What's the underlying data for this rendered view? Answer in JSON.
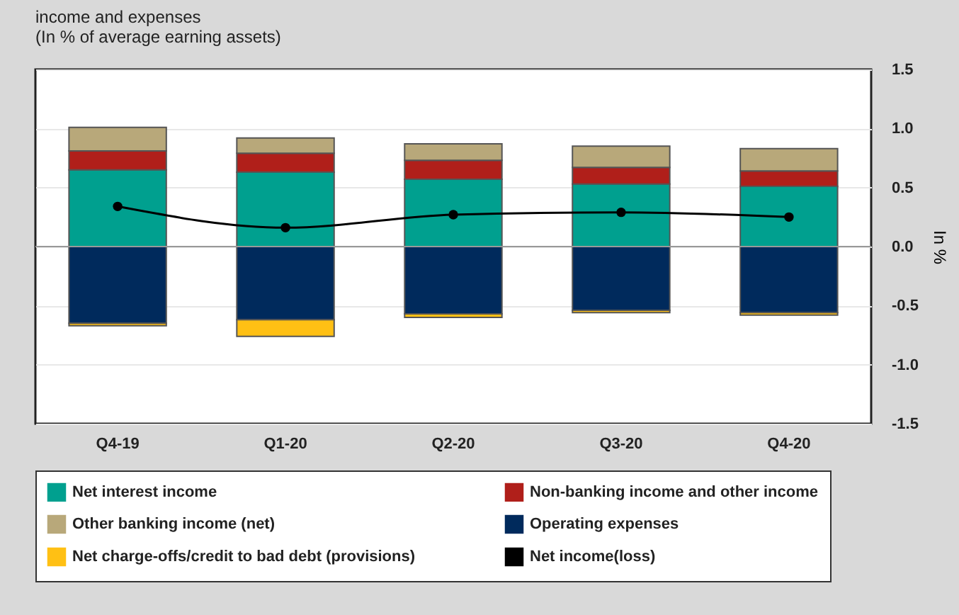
{
  "chart_data": {
    "type": "bar",
    "title": "income and expenses",
    "subtitle": "(In % of average earning assets)",
    "ylabel": "In %",
    "categories": [
      "Q4-19",
      "Q1-20",
      "Q2-20",
      "Q3-20",
      "Q4-20"
    ],
    "stacked": true,
    "series": [
      {
        "name": "Net interest income",
        "color": "#00a08f",
        "values": [
          0.65,
          0.63,
          0.57,
          0.53,
          0.51
        ]
      },
      {
        "name": "Non-banking income and other income",
        "color": "#b01f1a",
        "values": [
          0.16,
          0.16,
          0.16,
          0.14,
          0.13
        ]
      },
      {
        "name": "Other banking income (net)",
        "color": "#b8a87a",
        "values": [
          0.2,
          0.13,
          0.14,
          0.18,
          0.19
        ]
      },
      {
        "name": "Operating expenses",
        "color": "#002a5c",
        "values": [
          -0.65,
          -0.62,
          -0.57,
          -0.54,
          -0.56
        ]
      },
      {
        "name": "Net charge-offs/credit to bad debt (provisions)",
        "color": "#ffc014",
        "values": [
          -0.02,
          -0.14,
          -0.03,
          -0.02,
          -0.02
        ]
      },
      {
        "name": "Net income(loss)",
        "type": "line",
        "color": "#000000",
        "values": [
          0.34,
          0.16,
          0.27,
          0.29,
          0.25
        ]
      }
    ],
    "ylim": [
      -1.5,
      1.5
    ],
    "yticks": [
      {
        "value": -1.5,
        "label": "-1.5"
      },
      {
        "value": -1,
        "label": "-1.0"
      },
      {
        "value": -0.5,
        "label": "-0.5"
      },
      {
        "value": 0,
        "label": "0.0"
      },
      {
        "value": 0.5,
        "label": "0.5"
      },
      {
        "value": 1,
        "label": "1.0"
      },
      {
        "value": 1.5,
        "label": "1.5"
      }
    ],
    "grid": "y",
    "legend": "bottom",
    "marker": "circle",
    "line_style": "solid"
  }
}
